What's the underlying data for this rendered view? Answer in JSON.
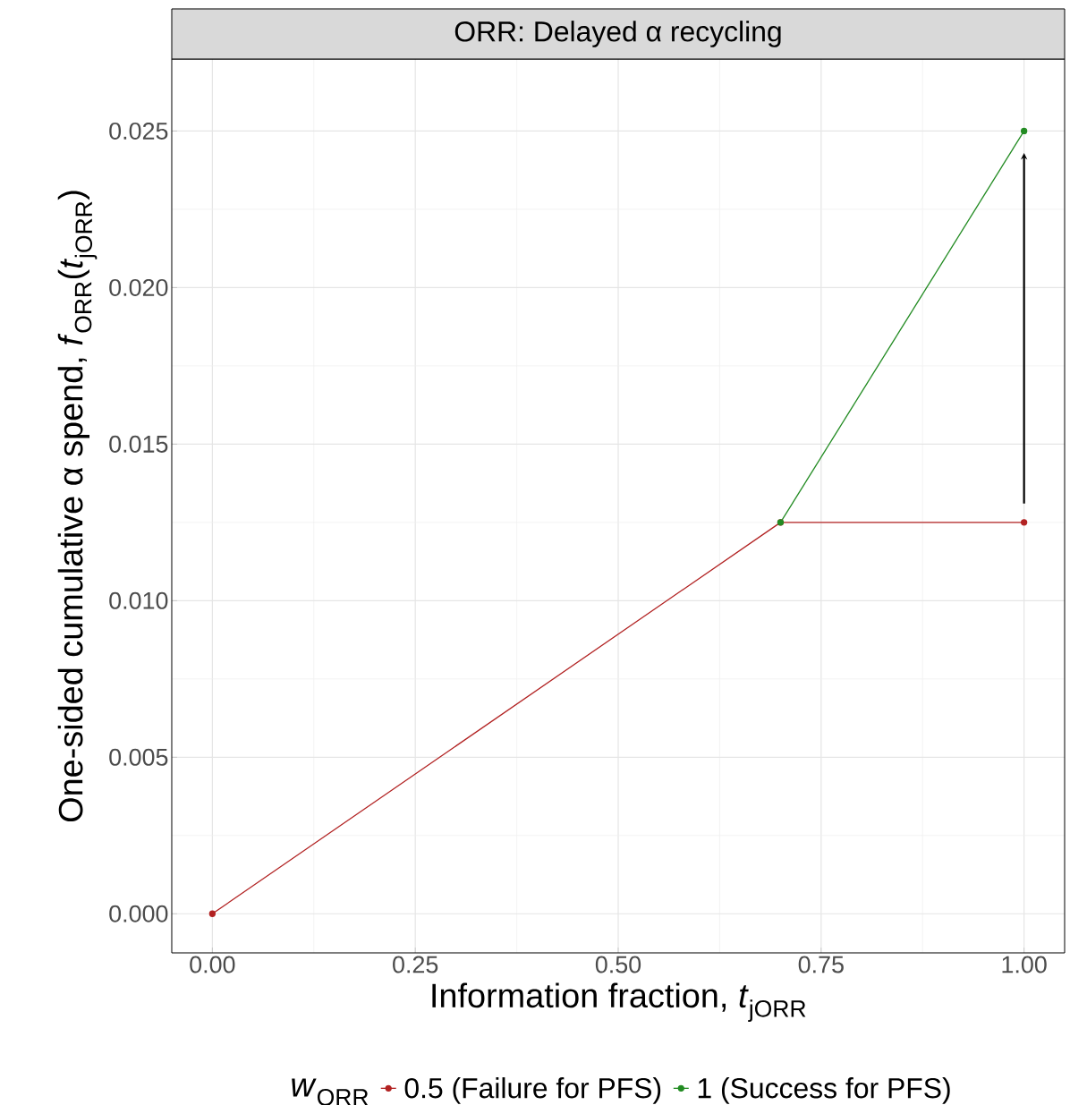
{
  "chart_data": {
    "type": "line",
    "title": "ORR: Delayed α recycling",
    "xlabel": "Information fraction,  *t*$_{jORR}$",
    "ylabel": "One-sided cumulative α spend,  *f*$_{ORR}$(*t*$_{jORR}$)",
    "legend_title": "*w*$_{ORR}$",
    "series": [
      {
        "name": "0.5 (Failure for PFS)",
        "color": "#b22222",
        "x": [
          0,
          0.7,
          1
        ],
        "values": [
          0,
          0.0125,
          0.0125
        ]
      },
      {
        "name": "1 (Success for PFS)",
        "color": "#228b22",
        "x": [
          0.7,
          1
        ],
        "values": [
          0.0125,
          0.025
        ]
      }
    ],
    "xlim": [
      -0.05,
      1.05
    ],
    "ylim": [
      -0.00125,
      0.0273
    ],
    "xticks": [
      {
        "value": 0,
        "label": "0.00"
      },
      {
        "value": 0.25,
        "label": "0.25"
      },
      {
        "value": 0.5,
        "label": "0.50"
      },
      {
        "value": 0.75,
        "label": "0.75"
      },
      {
        "value": 1,
        "label": "1.00"
      }
    ],
    "yticks": [
      {
        "value": 0,
        "label": "0.000"
      },
      {
        "value": 0.005,
        "label": "0.005"
      },
      {
        "value": 0.01,
        "label": "0.010"
      },
      {
        "value": 0.015,
        "label": "0.015"
      },
      {
        "value": 0.02,
        "label": "0.020"
      },
      {
        "value": 0.025,
        "label": "0.025"
      }
    ],
    "grid": true,
    "legend": "bottom",
    "marker": "circle",
    "line_style": "solid"
  }
}
